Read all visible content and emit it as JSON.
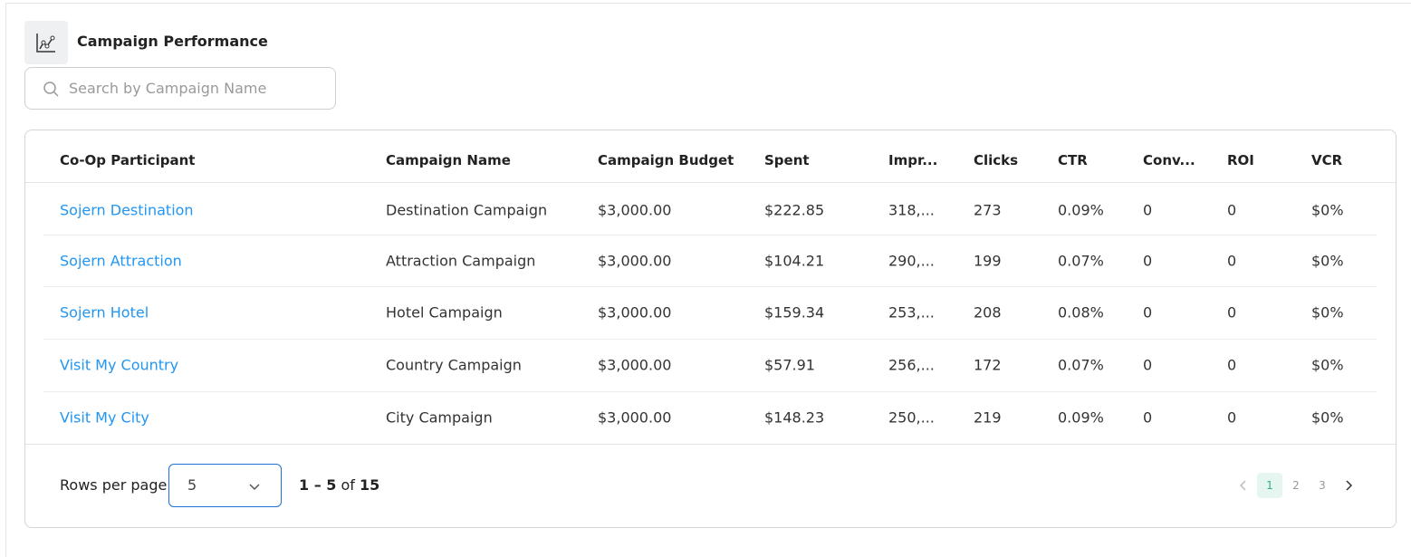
{
  "header": {
    "title": "Campaign Performance"
  },
  "search": {
    "placeholder": "Search by Campaign Name"
  },
  "table": {
    "columns": [
      "Co-Op Participant",
      "Campaign Name",
      "Campaign Budget",
      "Spent",
      "Impr...",
      "Clicks",
      "CTR",
      "Conv...",
      "ROI",
      "VCR"
    ],
    "rows": [
      [
        "Sojern Destination",
        "Destination Campaign",
        "$3,000.00",
        "$222.85",
        "318,...",
        "273",
        "0.09%",
        "0",
        "0",
        "$0%"
      ],
      [
        "Sojern Attraction",
        "Attraction Campaign",
        "$3,000.00",
        "$104.21",
        "290,...",
        "199",
        "0.07%",
        "0",
        "0",
        "$0%"
      ],
      [
        "Sojern Hotel",
        "Hotel Campaign",
        "$3,000.00",
        "$159.34",
        "253,...",
        "208",
        "0.08%",
        "0",
        "0",
        "$0%"
      ],
      [
        "Visit My Country",
        "Country Campaign",
        "$3,000.00",
        "$57.91",
        "256,...",
        "172",
        "0.07%",
        "0",
        "0",
        "$0%"
      ],
      [
        "Visit My City",
        "City Campaign",
        "$3,000.00",
        "$148.23",
        "250,...",
        "219",
        "0.09%",
        "0",
        "0",
        "$0%"
      ]
    ]
  },
  "pagination": {
    "rows_per_page_label": "Rows per page",
    "rows_per_page": "5",
    "range": "1 – 5",
    "of": "of",
    "total": "15",
    "pages": [
      "1",
      "2",
      "3"
    ]
  }
}
